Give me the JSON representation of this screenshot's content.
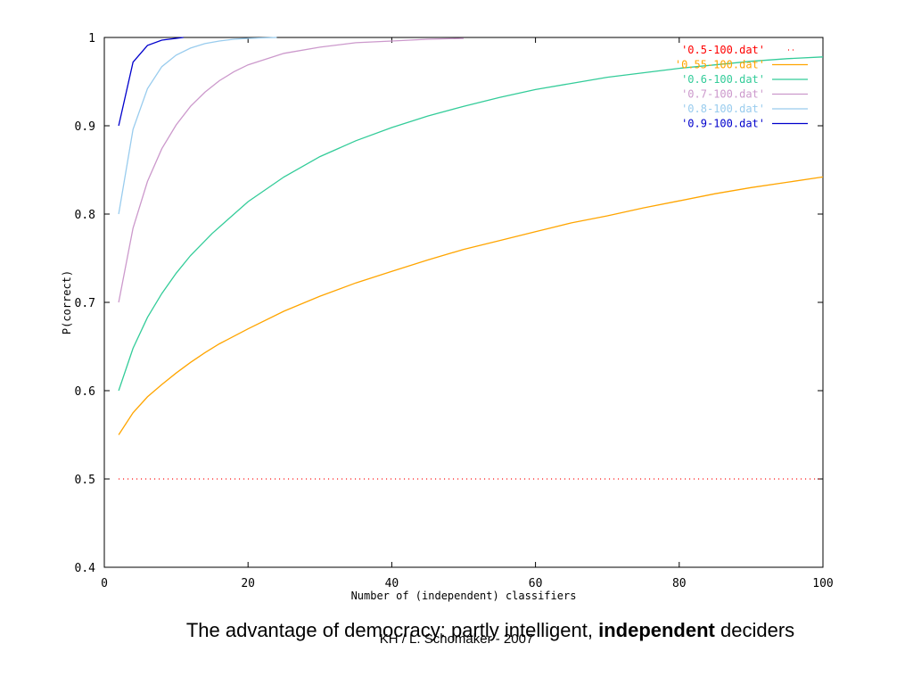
{
  "chart_data": {
    "type": "line",
    "xlabel": "Number of (independent) classifiers",
    "ylabel": "P(correct)",
    "xlim": [
      0,
      100
    ],
    "ylim": [
      0.4,
      1.0
    ],
    "x_ticks": [
      "0",
      "20",
      "40",
      "60",
      "80",
      "100"
    ],
    "y_ticks": [
      "0.4",
      "0.5",
      "0.6",
      "0.7",
      "0.8",
      "0.9",
      "1"
    ],
    "legend_position": "top-right",
    "grid": false,
    "series": [
      {
        "name": "'0.5-100.dat'",
        "color": "#ff0000",
        "style": "dotted",
        "x": [
          2,
          100
        ],
        "y": [
          0.5,
          0.5
        ]
      },
      {
        "name": "'0.55-100.dat'",
        "color": "#ffa500",
        "style": "solid",
        "x": [
          2,
          4,
          6,
          8,
          10,
          12,
          14,
          16,
          20,
          25,
          30,
          35,
          40,
          45,
          50,
          55,
          60,
          65,
          70,
          75,
          80,
          85,
          90,
          95,
          100
        ],
        "y": [
          0.55,
          0.575,
          0.593,
          0.607,
          0.62,
          0.632,
          0.643,
          0.653,
          0.67,
          0.69,
          0.707,
          0.722,
          0.735,
          0.748,
          0.76,
          0.77,
          0.78,
          0.79,
          0.798,
          0.807,
          0.815,
          0.823,
          0.83,
          0.836,
          0.842
        ]
      },
      {
        "name": "'0.6-100.dat'",
        "color": "#33cc99",
        "style": "solid",
        "x": [
          2,
          4,
          6,
          8,
          10,
          12,
          15,
          20,
          25,
          30,
          35,
          40,
          45,
          50,
          55,
          60,
          65,
          70,
          75,
          80,
          85,
          90,
          95,
          100
        ],
        "y": [
          0.6,
          0.648,
          0.683,
          0.71,
          0.733,
          0.753,
          0.778,
          0.814,
          0.842,
          0.865,
          0.883,
          0.898,
          0.911,
          0.922,
          0.932,
          0.941,
          0.948,
          0.955,
          0.96,
          0.965,
          0.969,
          0.973,
          0.976,
          0.978
        ]
      },
      {
        "name": "'0.7-100.dat'",
        "color": "#cc99cc",
        "style": "solid",
        "x": [
          2,
          4,
          6,
          8,
          10,
          12,
          14,
          16,
          18,
          20,
          25,
          30,
          35,
          40,
          45,
          50
        ],
        "y": [
          0.7,
          0.784,
          0.837,
          0.874,
          0.901,
          0.922,
          0.938,
          0.951,
          0.961,
          0.969,
          0.982,
          0.989,
          0.994,
          0.996,
          0.998,
          0.999
        ]
      },
      {
        "name": "'0.8-100.dat'",
        "color": "#99ccee",
        "style": "solid",
        "x": [
          2,
          4,
          6,
          8,
          10,
          12,
          14,
          16,
          18,
          20,
          24
        ],
        "y": [
          0.8,
          0.896,
          0.942,
          0.967,
          0.98,
          0.988,
          0.993,
          0.996,
          0.998,
          0.999,
          1.0
        ]
      },
      {
        "name": "'0.9-100.dat'",
        "color": "#0000cc",
        "style": "solid",
        "x": [
          2,
          4,
          6,
          8,
          10,
          11
        ],
        "y": [
          0.9,
          0.972,
          0.991,
          0.997,
          0.999,
          1.0
        ]
      }
    ]
  },
  "caption": {
    "text_normal": "The advantage of democracy: partly intelligent, ",
    "text_bold": "independent",
    "text_end": " deciders"
  },
  "footer": {
    "text": "KH / L. Schomaker - 2007"
  }
}
